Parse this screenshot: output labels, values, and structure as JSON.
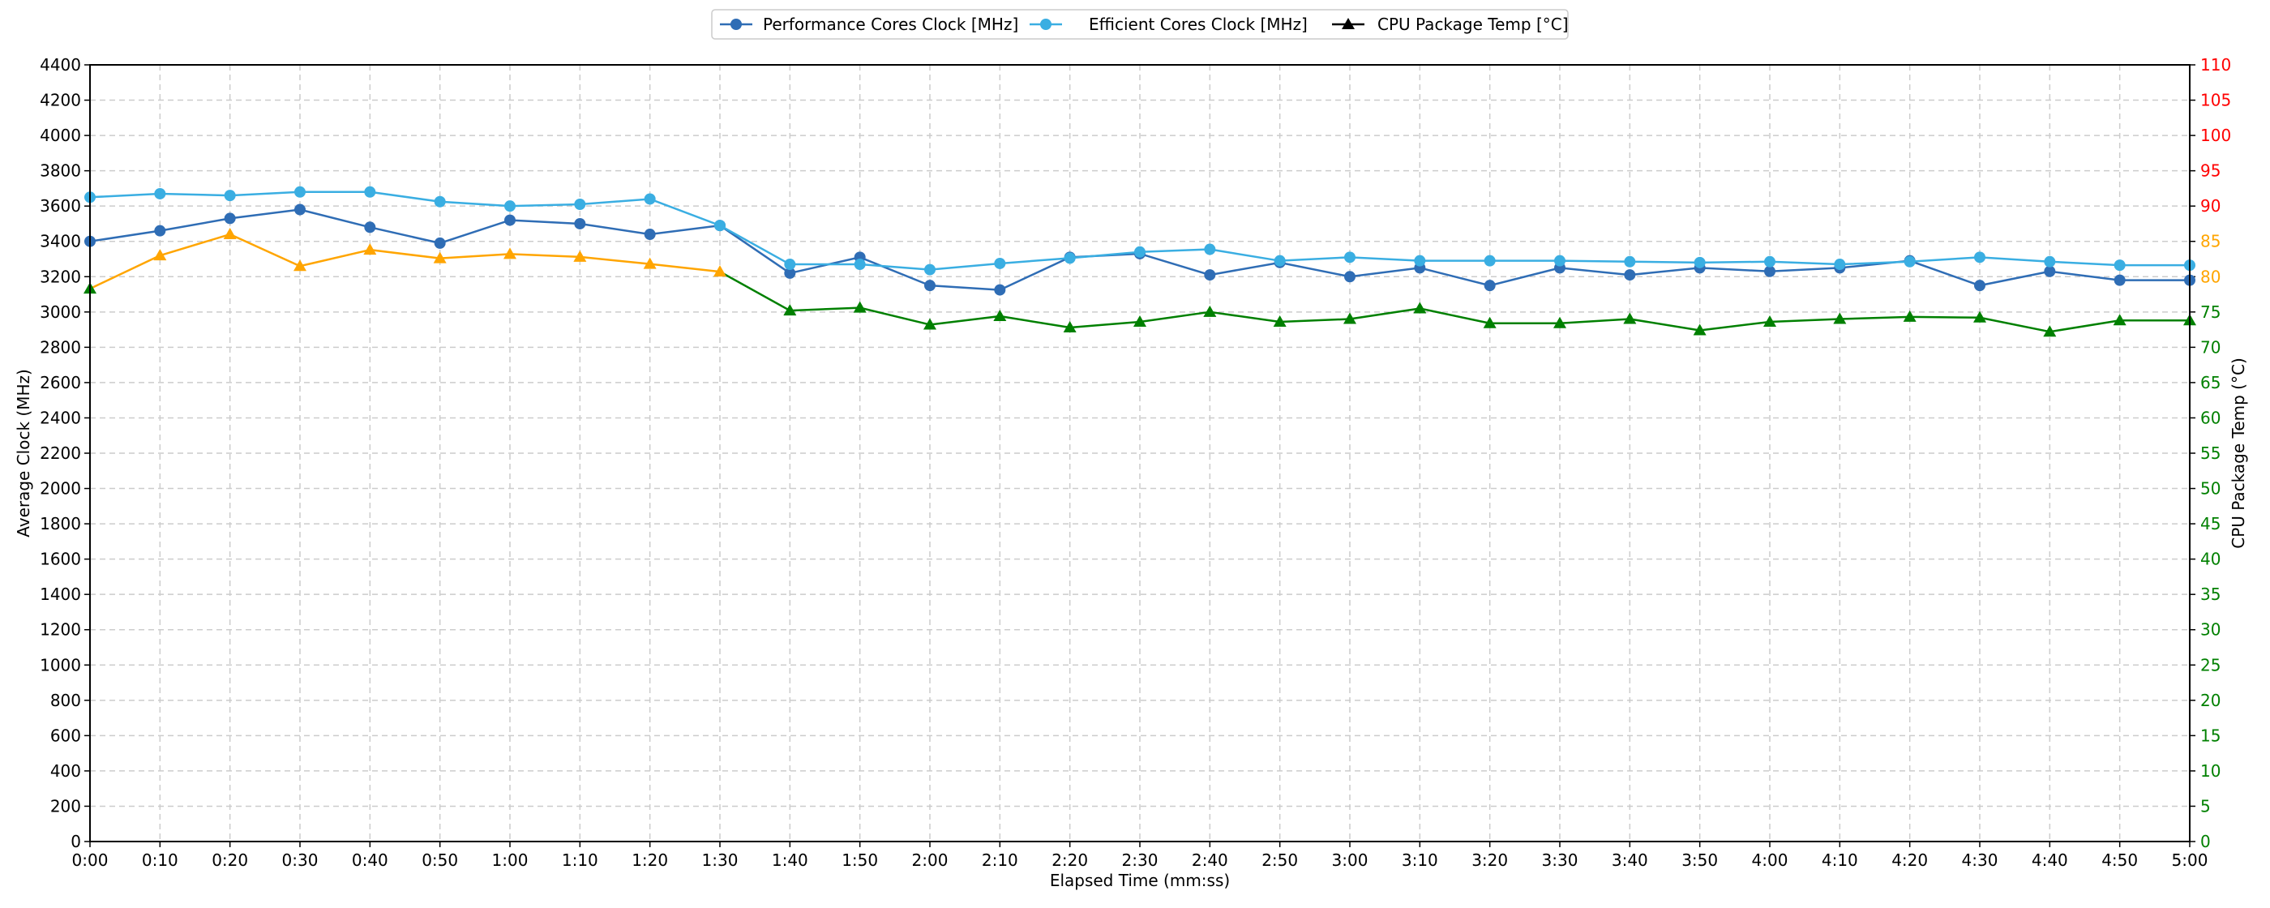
{
  "chart_data": {
    "type": "line",
    "title": "",
    "xlabel": "Elapsed Time (mm:ss)",
    "ylabel_left": "Average Clock (MHz)",
    "ylabel_right": "CPU Package Temp (°C)",
    "ylim_left": [
      0,
      4400
    ],
    "ylim_right": [
      0,
      110
    ],
    "yticks_left_step": 200,
    "yticks_right_step": 5,
    "grid": true,
    "legend_position": "top-center",
    "x": [
      "0:00",
      "0:10",
      "0:20",
      "0:30",
      "0:40",
      "0:50",
      "1:00",
      "1:10",
      "1:20",
      "1:30",
      "1:40",
      "1:50",
      "2:00",
      "2:10",
      "2:20",
      "2:30",
      "2:40",
      "2:50",
      "3:00",
      "3:10",
      "3:20",
      "3:30",
      "3:40",
      "3:50",
      "4:00",
      "4:10",
      "4:20",
      "4:30",
      "4:40",
      "4:50",
      "5:00"
    ],
    "series": [
      {
        "name": "Performance Cores Clock [MHz]",
        "axis": "left",
        "color": "#2f6db5",
        "marker": "circle",
        "values": [
          3400,
          3460,
          3530,
          3580,
          3480,
          3390,
          3520,
          3500,
          3440,
          3490,
          3220,
          3310,
          3150,
          3125,
          3310,
          3330,
          3210,
          3280,
          3200,
          3250,
          3150,
          3250,
          3210,
          3250,
          3230,
          3250,
          3290,
          3150,
          3230,
          3180,
          3180
        ]
      },
      {
        "name": "Efficient Cores Clock [MHz]",
        "axis": "left",
        "color": "#3aaee2",
        "marker": "circle",
        "values": [
          3650,
          3670,
          3660,
          3680,
          3680,
          3625,
          3600,
          3610,
          3640,
          3490,
          3270,
          3270,
          3240,
          3275,
          3305,
          3340,
          3355,
          3290,
          3310,
          3290,
          3290,
          3290,
          3285,
          3280,
          3285,
          3270,
          3285,
          3310,
          3285,
          3265,
          3265
        ]
      },
      {
        "name": "CPU Package Temp [°C]",
        "axis": "right",
        "color": "#000000",
        "marker": "triangle",
        "values": [
          78.3,
          83,
          86,
          81.5,
          83.8,
          82.6,
          83.2,
          82.8,
          81.8,
          80.7,
          75.2,
          75.6,
          73.2,
          74.4,
          72.8,
          73.6,
          75.0,
          73.6,
          74.0,
          75.5,
          73.4,
          73.4,
          74.0,
          72.4,
          73.6,
          74.0,
          74.3,
          74.2,
          72.2,
          73.8,
          73.8
        ]
      }
    ],
    "temp_color_bands": [
      {
        "min": 0,
        "max": 80,
        "color": "#008000"
      },
      {
        "min": 80,
        "max": 90,
        "color": "#ffa500"
      },
      {
        "min": 90,
        "max": 110,
        "color": "#ff0000"
      }
    ]
  }
}
